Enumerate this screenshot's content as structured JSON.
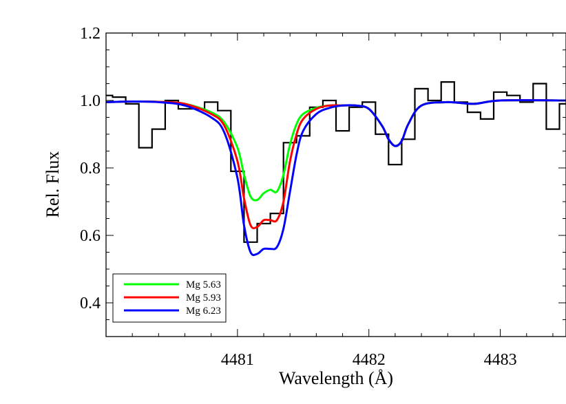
{
  "chart_data": {
    "type": "line",
    "title": "",
    "xlabel": "Wavelength (Å)",
    "ylabel": "Rel. Flux",
    "xlim": [
      4480.0,
      4483.5
    ],
    "ylim": [
      0.3,
      1.2
    ],
    "x_ticks": [
      4481,
      4482,
      4483
    ],
    "x_tick_labels": [
      "4481",
      "4482",
      "4483"
    ],
    "y_ticks": [
      0.4,
      0.6,
      0.8,
      1.0,
      1.2
    ],
    "y_tick_labels": [
      "0.4",
      "0.6",
      "0.8",
      "1.0",
      "1.2"
    ],
    "x_minor_step": 0.2,
    "y_minor_step": 0.05,
    "grid": false,
    "legend_position": "bottom-left",
    "observed": {
      "color": "#000000",
      "step": "mid",
      "x": [
        4480.0,
        4480.1,
        4480.2,
        4480.3,
        4480.4,
        4480.5,
        4480.6,
        4480.7,
        4480.8,
        4480.9,
        4481.0,
        4481.1,
        4481.2,
        4481.3,
        4481.4,
        4481.5,
        4481.6,
        4481.7,
        4481.8,
        4481.9,
        4482.0,
        4482.1,
        4482.2,
        4482.3,
        4482.4,
        4482.5,
        4482.6,
        4482.7,
        4482.8,
        4482.9,
        4483.0,
        4483.1,
        4483.2,
        4483.3,
        4483.4,
        4483.5
      ],
      "y": [
        1.015,
        1.01,
        0.99,
        0.86,
        0.915,
        1.0,
        0.975,
        0.975,
        0.995,
        0.97,
        0.79,
        0.58,
        0.635,
        0.665,
        0.875,
        0.895,
        0.98,
        1.0,
        0.91,
        0.98,
        0.995,
        0.9,
        0.81,
        0.885,
        1.035,
        1.0,
        1.055,
        0.995,
        0.965,
        0.945,
        1.025,
        1.015,
        0.995,
        1.05,
        0.915,
        0.99
      ]
    },
    "series": [
      {
        "name": "Mg 5.63",
        "color": "#00ff00",
        "x": [
          4480.0,
          4480.2,
          4480.4,
          4480.6,
          4480.8,
          4480.9,
          4481.0,
          4481.05,
          4481.1,
          4481.15,
          4481.2,
          4481.25,
          4481.3,
          4481.35,
          4481.4,
          4481.45,
          4481.5,
          4481.6,
          4481.7,
          4481.8,
          4481.9,
          4482.0,
          4482.1,
          4482.15,
          4482.2,
          4482.25,
          4482.3,
          4482.4,
          4482.6,
          4482.8,
          4483.0,
          4483.5
        ],
        "y": [
          0.995,
          0.997,
          0.996,
          0.99,
          0.965,
          0.935,
          0.86,
          0.78,
          0.715,
          0.705,
          0.725,
          0.735,
          0.73,
          0.78,
          0.87,
          0.93,
          0.96,
          0.978,
          0.985,
          0.985,
          0.985,
          0.975,
          0.925,
          0.885,
          0.865,
          0.88,
          0.93,
          0.985,
          0.995,
          0.99,
          1.0,
          1.0
        ]
      },
      {
        "name": "Mg 5.93",
        "color": "#ff0000",
        "x": [
          4480.0,
          4480.2,
          4480.4,
          4480.6,
          4480.8,
          4480.9,
          4481.0,
          4481.05,
          4481.1,
          4481.15,
          4481.2,
          4481.25,
          4481.3,
          4481.35,
          4481.4,
          4481.45,
          4481.5,
          4481.6,
          4481.7,
          4481.8,
          4481.9,
          4482.0,
          4482.1,
          4482.15,
          4482.2,
          4482.25,
          4482.3,
          4482.4,
          4482.6,
          4482.8,
          4483.0,
          4483.5
        ],
        "y": [
          0.995,
          0.997,
          0.996,
          0.99,
          0.96,
          0.925,
          0.82,
          0.71,
          0.63,
          0.625,
          0.645,
          0.645,
          0.645,
          0.7,
          0.82,
          0.9,
          0.945,
          0.975,
          0.985,
          0.985,
          0.985,
          0.975,
          0.925,
          0.885,
          0.865,
          0.88,
          0.93,
          0.985,
          0.995,
          0.99,
          1.0,
          1.0
        ]
      },
      {
        "name": "Mg 6.23",
        "color": "#0000ff",
        "x": [
          4480.0,
          4480.2,
          4480.4,
          4480.6,
          4480.8,
          4480.9,
          4481.0,
          4481.05,
          4481.1,
          4481.15,
          4481.2,
          4481.25,
          4481.3,
          4481.35,
          4481.4,
          4481.45,
          4481.5,
          4481.6,
          4481.7,
          4481.8,
          4481.9,
          4482.0,
          4482.1,
          4482.15,
          4482.2,
          4482.25,
          4482.3,
          4482.4,
          4482.6,
          4482.8,
          4483.0,
          4483.5
        ],
        "y": [
          0.995,
          0.997,
          0.995,
          0.985,
          0.95,
          0.905,
          0.77,
          0.63,
          0.55,
          0.545,
          0.56,
          0.56,
          0.565,
          0.62,
          0.73,
          0.84,
          0.91,
          0.96,
          0.978,
          0.985,
          0.985,
          0.975,
          0.925,
          0.885,
          0.865,
          0.88,
          0.93,
          0.985,
          0.995,
          0.99,
          1.0,
          1.0
        ]
      }
    ]
  }
}
